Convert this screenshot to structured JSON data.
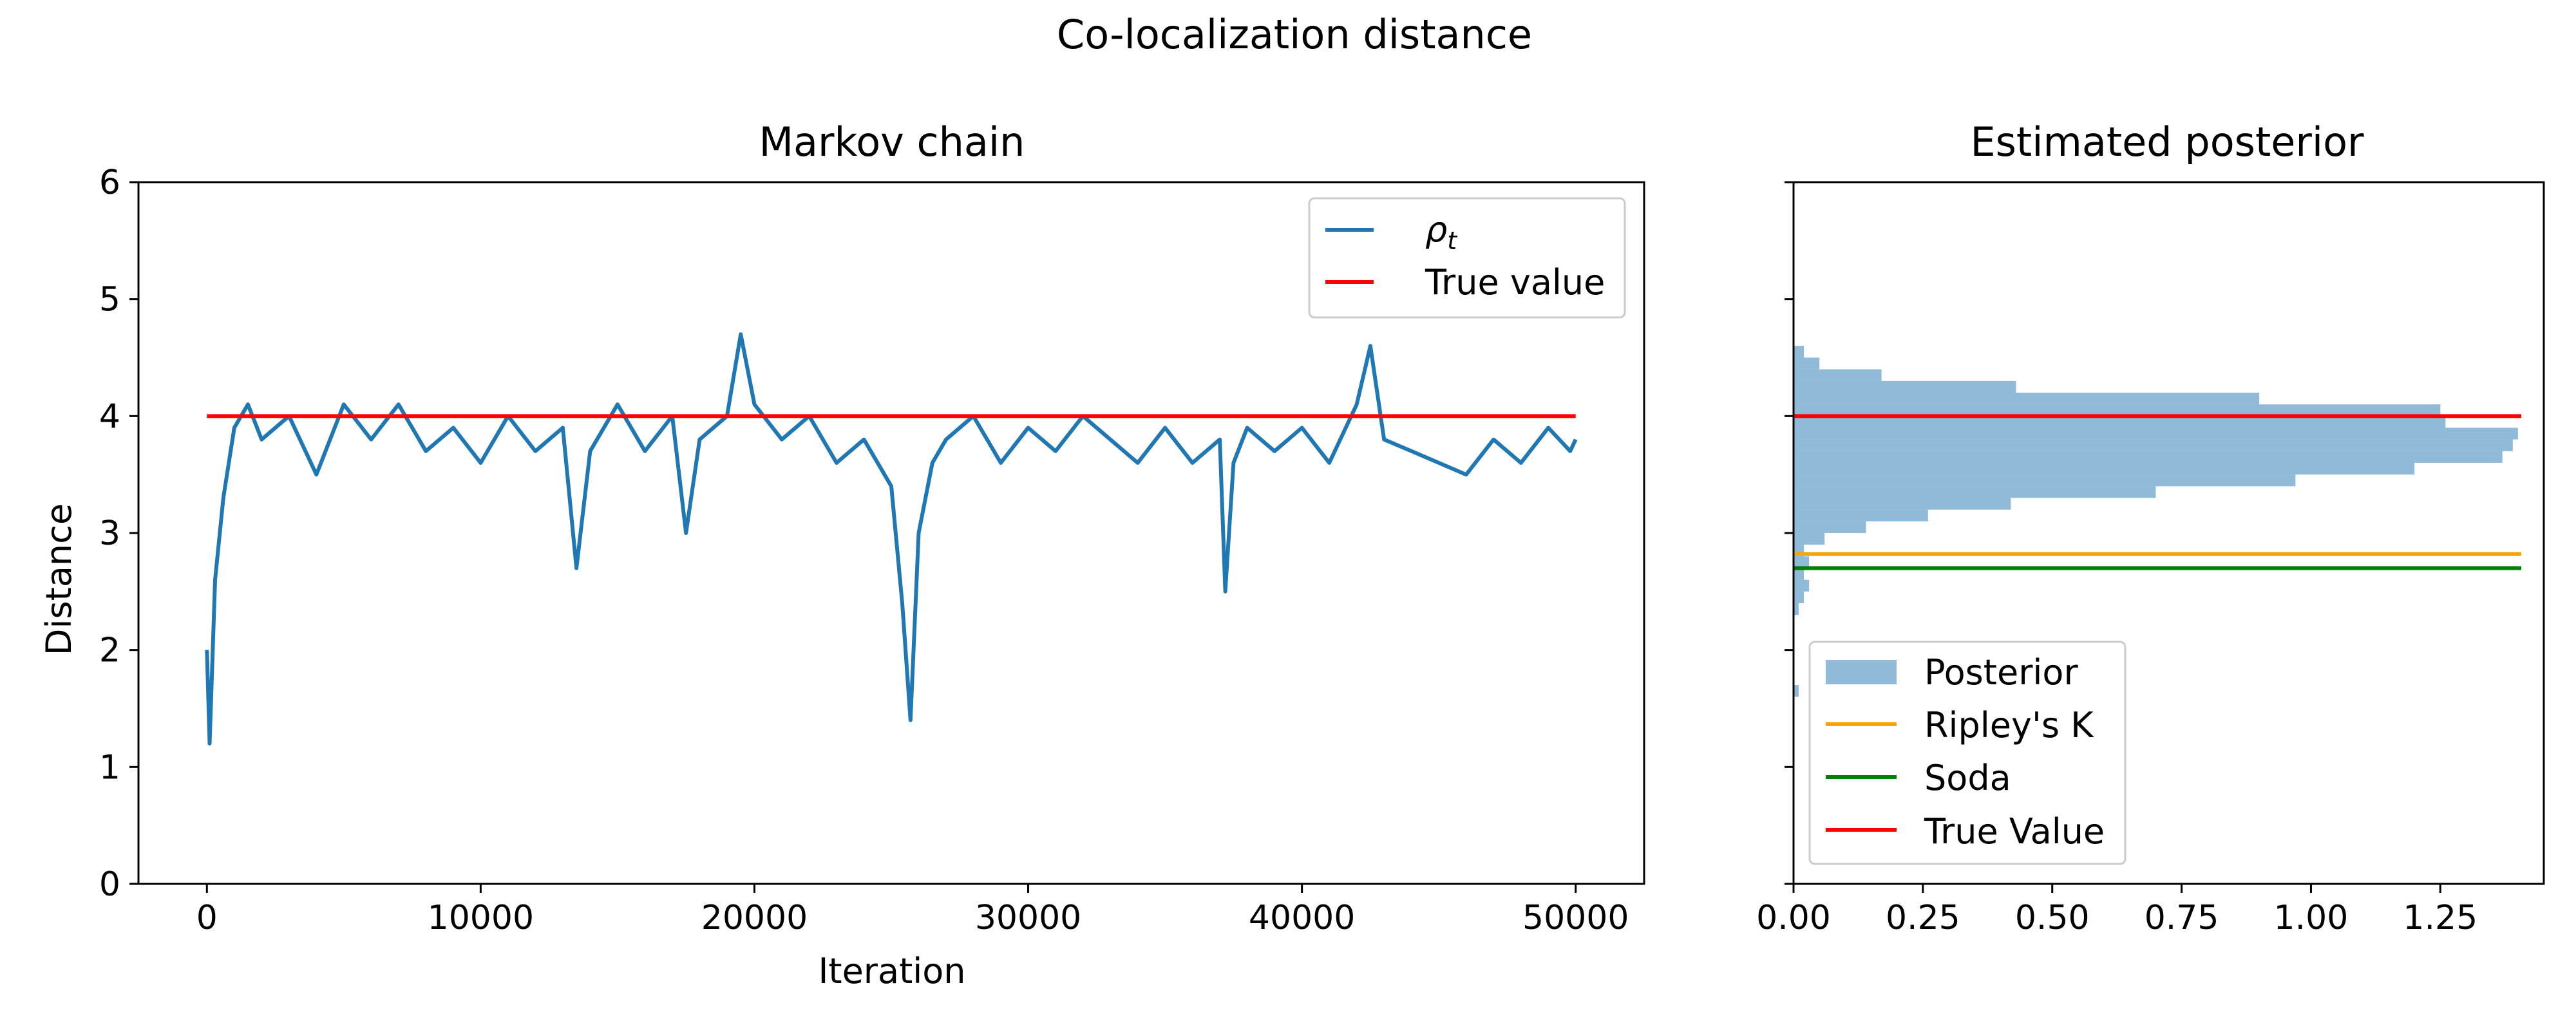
{
  "figure": {
    "suptitle": "Co-localization distance"
  },
  "chart_data": [
    {
      "type": "line",
      "title": "Markov chain",
      "xlabel": "Iteration",
      "ylabel": "Distance",
      "xlim": [
        -2500,
        52500
      ],
      "ylim": [
        0,
        6
      ],
      "xticks": [
        0,
        10000,
        20000,
        30000,
        40000,
        50000
      ],
      "yticks": [
        0,
        1,
        2,
        3,
        4,
        5,
        6
      ],
      "legend": {
        "placement": "top-right",
        "entries": [
          "ρt",
          "True value"
        ]
      },
      "series": [
        {
          "name": "ρt",
          "color": "#1f77b4",
          "x": [
            0,
            100,
            300,
            600,
            1000,
            1500,
            2000,
            3000,
            4000,
            5000,
            6000,
            7000,
            8000,
            9000,
            10000,
            11000,
            12000,
            13000,
            13500,
            14000,
            15000,
            16000,
            17000,
            17500,
            18000,
            19000,
            19500,
            20000,
            21000,
            22000,
            23000,
            24000,
            25000,
            25400,
            25700,
            26000,
            26500,
            27000,
            28000,
            29000,
            30000,
            31000,
            32000,
            33000,
            34000,
            35000,
            36000,
            37000,
            37200,
            37500,
            38000,
            39000,
            40000,
            41000,
            42000,
            42500,
            43000,
            44000,
            45000,
            46000,
            47000,
            48000,
            49000,
            49800,
            50000
          ],
          "y": [
            2.0,
            1.2,
            2.6,
            3.3,
            3.9,
            4.1,
            3.8,
            4.0,
            3.5,
            4.1,
            3.8,
            4.1,
            3.7,
            3.9,
            3.6,
            4.0,
            3.7,
            3.9,
            2.7,
            3.7,
            4.1,
            3.7,
            4.0,
            3.0,
            3.8,
            4.0,
            4.7,
            4.1,
            3.8,
            4.0,
            3.6,
            3.8,
            3.4,
            2.4,
            1.4,
            3.0,
            3.6,
            3.8,
            4.0,
            3.6,
            3.9,
            3.7,
            4.0,
            3.8,
            3.6,
            3.9,
            3.6,
            3.8,
            2.5,
            3.6,
            3.9,
            3.7,
            3.9,
            3.6,
            4.1,
            4.6,
            3.8,
            3.7,
            3.6,
            3.5,
            3.8,
            3.6,
            3.9,
            3.7,
            3.8
          ]
        },
        {
          "name": "True value",
          "color": "#ff0000",
          "x": [
            0,
            50000
          ],
          "y": [
            4.0,
            4.0
          ]
        }
      ]
    },
    {
      "type": "bar",
      "orientation": "horizontal",
      "title": "Estimated posterior",
      "xlim": [
        0,
        1.45
      ],
      "ylim": [
        0,
        6
      ],
      "xticks": [
        0.0,
        0.25,
        0.5,
        0.75,
        1.0,
        1.25
      ],
      "xtick_labels": [
        "0.00",
        "0.25",
        "0.50",
        "0.75",
        "1.00",
        "1.25"
      ],
      "legend": {
        "placement": "lower-left",
        "entries": [
          "Posterior",
          "Ripley's K",
          "Soda",
          "True Value"
        ]
      },
      "histogram": {
        "name": "Posterior",
        "color": "#1f77b4",
        "opacity": 0.5,
        "bins": [
          {
            "y0": 1.6,
            "y1": 1.7,
            "value": 0.01
          },
          {
            "y0": 2.3,
            "y1": 2.4,
            "value": 0.01
          },
          {
            "y0": 2.4,
            "y1": 2.5,
            "value": 0.02
          },
          {
            "y0": 2.5,
            "y1": 2.6,
            "value": 0.03
          },
          {
            "y0": 2.6,
            "y1": 2.7,
            "value": 0.02
          },
          {
            "y0": 2.7,
            "y1": 2.8,
            "value": 0.03
          },
          {
            "y0": 2.8,
            "y1": 2.9,
            "value": 0.02
          },
          {
            "y0": 2.9,
            "y1": 3.0,
            "value": 0.06
          },
          {
            "y0": 3.0,
            "y1": 3.1,
            "value": 0.14
          },
          {
            "y0": 3.1,
            "y1": 3.2,
            "value": 0.26
          },
          {
            "y0": 3.2,
            "y1": 3.3,
            "value": 0.42
          },
          {
            "y0": 3.3,
            "y1": 3.4,
            "value": 0.7
          },
          {
            "y0": 3.4,
            "y1": 3.5,
            "value": 0.97
          },
          {
            "y0": 3.5,
            "y1": 3.6,
            "value": 1.2
          },
          {
            "y0": 3.6,
            "y1": 3.7,
            "value": 1.37
          },
          {
            "y0": 3.7,
            "y1": 3.8,
            "value": 1.39
          },
          {
            "y0": 3.8,
            "y1": 3.9,
            "value": 1.4
          },
          {
            "y0": 3.9,
            "y1": 4.0,
            "value": 1.26
          },
          {
            "y0": 4.0,
            "y1": 4.1,
            "value": 1.25
          },
          {
            "y0": 4.1,
            "y1": 4.2,
            "value": 0.9
          },
          {
            "y0": 4.2,
            "y1": 4.3,
            "value": 0.43
          },
          {
            "y0": 4.3,
            "y1": 4.4,
            "value": 0.17
          },
          {
            "y0": 4.4,
            "y1": 4.5,
            "value": 0.05
          },
          {
            "y0": 4.5,
            "y1": 4.6,
            "value": 0.02
          }
        ]
      },
      "hlines": [
        {
          "name": "Ripley's K",
          "y": 2.82,
          "color": "#ffa500"
        },
        {
          "name": "Soda",
          "y": 2.7,
          "color": "#008000"
        },
        {
          "name": "True Value",
          "y": 4.0,
          "color": "#ff0000"
        }
      ]
    }
  ]
}
